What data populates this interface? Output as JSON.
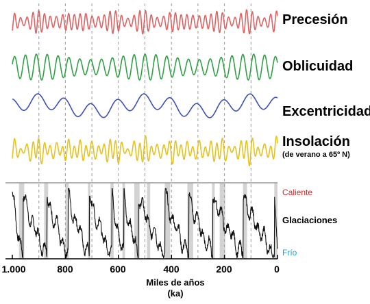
{
  "chart_data": {
    "type": "line",
    "x_axis": {
      "label": "Miles de años\n(ka)",
      "range_ka": [
        1000,
        0
      ],
      "reversed": true,
      "ticks": [
        {
          "value": 1000,
          "label": "1.000"
        },
        {
          "value": 800,
          "label": "800"
        },
        {
          "value": 600,
          "label": "600"
        },
        {
          "value": 400,
          "label": "400"
        },
        {
          "value": 200,
          "label": "200"
        },
        {
          "value": 0,
          "label": "0"
        }
      ],
      "dashed_gridlines_ka": [
        900,
        800,
        700,
        600,
        500,
        400,
        300,
        200,
        100
      ]
    },
    "series": [
      {
        "name": "Precesión",
        "color": "#e06262",
        "period_ka": 22,
        "style": "oscillation"
      },
      {
        "name": "Oblicuidad",
        "color": "#2fa043",
        "period_ka": 41,
        "style": "oscillation"
      },
      {
        "name": "Excentricidad",
        "color": "#3c4fb8",
        "period_ka": 100,
        "style": "oscillation"
      },
      {
        "name": "Insolación",
        "subtitle": "(de verano a 65º N)",
        "color": "#e6c21d",
        "style": "oscillation"
      },
      {
        "name": "Glaciaciones",
        "color": "#111111",
        "style": "sawtooth",
        "terminations_ka": [
          960,
          870,
          790,
          710,
          625,
          580,
          525,
          425,
          335,
          245,
          130,
          12
        ],
        "legend_warm": "Caliente",
        "legend_cold": "Frío",
        "warm_color": "#e02020",
        "cold_color": "#1aa6c8"
      }
    ],
    "interglacial_bands_ka": [
      [
        975,
        955
      ],
      [
        880,
        865
      ],
      [
        800,
        787
      ],
      [
        715,
        706
      ],
      [
        630,
        618
      ],
      [
        585,
        575
      ],
      [
        540,
        520
      ],
      [
        492,
        480
      ],
      [
        425,
        405
      ],
      [
        340,
        318
      ],
      [
        247,
        237
      ],
      [
        218,
        197
      ],
      [
        130,
        115
      ],
      [
        12,
        0
      ]
    ],
    "grid": "dashed vertical"
  }
}
